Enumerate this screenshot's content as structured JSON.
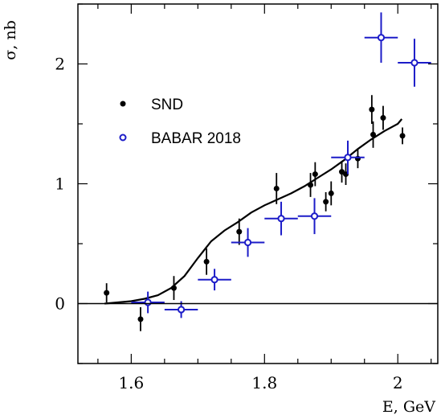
{
  "chart_data": {
    "type": "scatter",
    "xlabel": "E, GeV",
    "ylabel": "σ, nb",
    "xlim": [
      1.52,
      2.06
    ],
    "ylim": [
      -0.5,
      2.5
    ],
    "x_ticks": [
      1.6,
      1.8,
      2.0
    ],
    "x_tick_labels": [
      "1.6",
      "1.8",
      "2"
    ],
    "y_ticks": [
      0,
      1,
      2
    ],
    "y_tick_labels": [
      "0",
      "1",
      "2"
    ],
    "zero_line": true,
    "grid": false,
    "legend": {
      "position": "top-left"
    },
    "series": [
      {
        "name": "SND",
        "marker": "filled-circle",
        "color": "#000000",
        "points": [
          {
            "x": 1.563,
            "y": 0.09,
            "yerr": 0.08
          },
          {
            "x": 1.614,
            "y": -0.13,
            "yerr": 0.1
          },
          {
            "x": 1.664,
            "y": 0.13,
            "yerr": 0.1
          },
          {
            "x": 1.713,
            "y": 0.35,
            "yerr": 0.11
          },
          {
            "x": 1.762,
            "y": 0.6,
            "yerr": 0.11
          },
          {
            "x": 1.818,
            "y": 0.96,
            "yerr": 0.13
          },
          {
            "x": 1.869,
            "y": 0.99,
            "yerr": 0.1
          },
          {
            "x": 1.876,
            "y": 1.08,
            "yerr": 0.1
          },
          {
            "x": 1.892,
            "y": 0.85,
            "yerr": 0.08
          },
          {
            "x": 1.9,
            "y": 0.92,
            "yerr": 0.1
          },
          {
            "x": 1.916,
            "y": 1.1,
            "yerr": 0.09
          },
          {
            "x": 1.922,
            "y": 1.08,
            "yerr": 0.09
          },
          {
            "x": 1.94,
            "y": 1.21,
            "yerr": 0.08
          },
          {
            "x": 1.961,
            "y": 1.62,
            "yerr": 0.12
          },
          {
            "x": 1.963,
            "y": 1.41,
            "yerr": 0.11
          },
          {
            "x": 1.978,
            "y": 1.55,
            "yerr": 0.1
          },
          {
            "x": 2.007,
            "y": 1.4,
            "yerr": 0.07
          }
        ]
      },
      {
        "name": "BABAR 2018",
        "marker": "open-circle",
        "color": "#1c1cc8",
        "points": [
          {
            "x": 1.625,
            "y": 0.01,
            "xerr": 0.025,
            "yerr": 0.09
          },
          {
            "x": 1.675,
            "y": -0.05,
            "xerr": 0.025,
            "yerr": 0.07
          },
          {
            "x": 1.725,
            "y": 0.2,
            "xerr": 0.025,
            "yerr": 0.09
          },
          {
            "x": 1.775,
            "y": 0.51,
            "xerr": 0.025,
            "yerr": 0.12
          },
          {
            "x": 1.825,
            "y": 0.71,
            "xerr": 0.025,
            "yerr": 0.14
          },
          {
            "x": 1.875,
            "y": 0.73,
            "xerr": 0.025,
            "yerr": 0.15
          },
          {
            "x": 1.925,
            "y": 1.22,
            "xerr": 0.025,
            "yerr": 0.14
          },
          {
            "x": 1.975,
            "y": 2.22,
            "xerr": 0.025,
            "yerr": 0.21
          },
          {
            "x": 2.025,
            "y": 2.01,
            "xerr": 0.025,
            "yerr": 0.2
          }
        ]
      }
    ],
    "fit_curve": {
      "color": "#000000",
      "points": [
        [
          1.56,
          0.0
        ],
        [
          1.58,
          0.01
        ],
        [
          1.6,
          0.02
        ],
        [
          1.62,
          0.04
        ],
        [
          1.64,
          0.07
        ],
        [
          1.66,
          0.13
        ],
        [
          1.68,
          0.23
        ],
        [
          1.7,
          0.38
        ],
        [
          1.72,
          0.52
        ],
        [
          1.74,
          0.61
        ],
        [
          1.76,
          0.68
        ],
        [
          1.78,
          0.76
        ],
        [
          1.8,
          0.82
        ],
        [
          1.82,
          0.87
        ],
        [
          1.84,
          0.92
        ],
        [
          1.86,
          0.98
        ],
        [
          1.88,
          1.05
        ],
        [
          1.9,
          1.12
        ],
        [
          1.92,
          1.2
        ],
        [
          1.94,
          1.29
        ],
        [
          1.96,
          1.37
        ],
        [
          1.98,
          1.44
        ],
        [
          2.0,
          1.5
        ],
        [
          2.006,
          1.54
        ]
      ]
    }
  }
}
